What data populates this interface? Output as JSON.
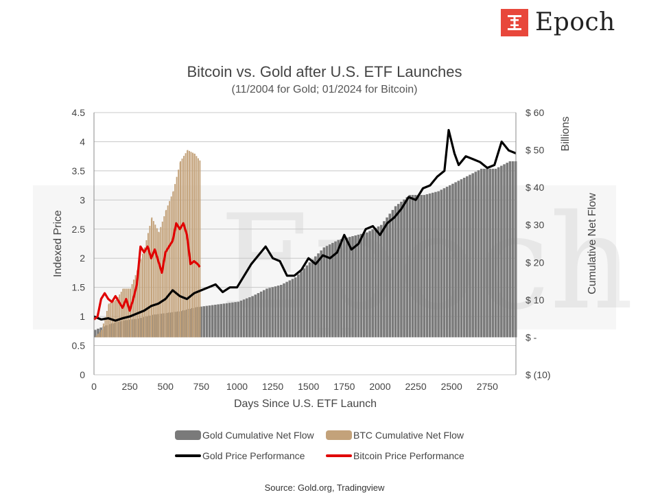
{
  "brand": {
    "name": "Epoch",
    "watermark": "Epoch",
    "color": "#e8473b",
    "icon": "epoch-logo-icon"
  },
  "title": "Bitcoin vs. Gold after U.S. ETF Launches",
  "subtitle": "(11/2004 for Gold; 01/2024 for Bitcoin)",
  "source": "Source: Gold.org, Tradingview",
  "axes": {
    "xlabel": "Days Since U.S. ETF Launch",
    "ylabel_left": "Indexed Price",
    "ylabel_right_units": "Billions",
    "ylabel_right": "Cumulative Net Flow",
    "x_ticks": [
      "0",
      "250",
      "500",
      "750",
      "1000",
      "1250",
      "1500",
      "1750",
      "2000",
      "2250",
      "2500",
      "2750"
    ],
    "y_left_ticks": [
      "0",
      "0.5",
      "1",
      "1.5",
      "2",
      "2.5",
      "3",
      "3.5",
      "4",
      "4.5"
    ],
    "y_right_ticks": [
      "$ (10)",
      "$ -",
      "$ 10",
      "$ 20",
      "$ 30",
      "$ 40",
      "$ 50",
      "$ 60"
    ]
  },
  "legend": {
    "gold_flow": "Gold Cumulative Net Flow",
    "btc_flow": "BTC Cumulative Net Flow",
    "gold_price": "Gold Price Performance",
    "btc_price": "Bitcoin Price Performance"
  },
  "colors": {
    "gold_flow": "#7a7a7a",
    "btc_flow": "#c3a27a",
    "gold_price": "#000000",
    "btc_price": "#e00000",
    "grid": "#c8c8c8"
  },
  "chart_data": {
    "type": "bar+line",
    "x_range": [
      0,
      2950
    ],
    "ylim_left": [
      0,
      4.5
    ],
    "ylim_right": [
      -10,
      60
    ],
    "grid": true,
    "legend_position": "bottom",
    "series": [
      {
        "name": "Gold Cumulative Net Flow",
        "type": "bar",
        "axis": "right",
        "x": [
          0,
          100,
          200,
          300,
          400,
          500,
          600,
          700,
          800,
          900,
          1000,
          1100,
          1200,
          1300,
          1400,
          1500,
          1600,
          1700,
          1800,
          1900,
          2000,
          2100,
          2200,
          2300,
          2400,
          2500,
          2600,
          2700,
          2800,
          2900,
          2950
        ],
        "y": [
          2,
          3.5,
          4.5,
          5,
          6,
          6.5,
          7,
          8,
          8.5,
          9,
          9.5,
          11,
          13,
          14,
          16,
          20,
          24,
          26,
          27,
          28,
          30,
          35,
          38,
          38,
          39,
          41,
          43,
          45,
          45,
          47,
          47
        ]
      },
      {
        "name": "BTC Cumulative Net Flow",
        "type": "bar",
        "axis": "right",
        "x": [
          0,
          50,
          100,
          150,
          200,
          250,
          300,
          350,
          400,
          450,
          500,
          550,
          600,
          650,
          700,
          740
        ],
        "y": [
          0,
          2,
          9,
          10,
          13,
          13,
          18,
          24,
          32,
          28,
          34,
          39,
          47,
          50,
          49,
          47
        ]
      },
      {
        "name": "Gold Price Performance",
        "type": "line",
        "axis": "left",
        "x": [
          0,
          50,
          100,
          150,
          200,
          250,
          300,
          350,
          400,
          450,
          500,
          550,
          600,
          650,
          700,
          750,
          800,
          850,
          900,
          950,
          1000,
          1050,
          1100,
          1150,
          1200,
          1250,
          1300,
          1350,
          1400,
          1450,
          1500,
          1550,
          1600,
          1650,
          1700,
          1750,
          1800,
          1850,
          1900,
          1950,
          2000,
          2050,
          2100,
          2150,
          2200,
          2250,
          2300,
          2350,
          2400,
          2450,
          2480,
          2520,
          2550,
          2600,
          2650,
          2700,
          2750,
          2800,
          2850,
          2900,
          2950
        ],
        "y": [
          1.0,
          0.95,
          0.97,
          0.93,
          0.97,
          1.0,
          1.05,
          1.1,
          1.18,
          1.22,
          1.3,
          1.45,
          1.35,
          1.3,
          1.4,
          1.45,
          1.5,
          1.55,
          1.42,
          1.5,
          1.5,
          1.7,
          1.9,
          2.05,
          2.2,
          2.0,
          1.95,
          1.7,
          1.7,
          1.8,
          2.0,
          1.9,
          2.05,
          2.0,
          2.1,
          2.4,
          2.15,
          2.25,
          2.5,
          2.55,
          2.4,
          2.6,
          2.7,
          2.85,
          3.05,
          3.0,
          3.2,
          3.25,
          3.4,
          3.5,
          4.2,
          3.8,
          3.6,
          3.75,
          3.7,
          3.65,
          3.55,
          3.6,
          4.0,
          3.85,
          3.8
        ]
      },
      {
        "name": "Bitcoin Price Performance",
        "type": "line",
        "axis": "left",
        "x": [
          0,
          25,
          50,
          75,
          100,
          125,
          150,
          175,
          200,
          225,
          250,
          275,
          300,
          325,
          350,
          375,
          400,
          425,
          450,
          475,
          500,
          525,
          550,
          575,
          600,
          625,
          650,
          675,
          700,
          725,
          740
        ],
        "y": [
          0.95,
          1.0,
          1.3,
          1.4,
          1.3,
          1.25,
          1.35,
          1.25,
          1.15,
          1.3,
          1.1,
          1.3,
          1.55,
          2.2,
          2.1,
          2.2,
          2.0,
          2.15,
          1.95,
          1.75,
          2.1,
          2.2,
          2.3,
          2.6,
          2.5,
          2.6,
          2.4,
          1.9,
          1.95,
          1.9,
          1.85
        ]
      }
    ]
  }
}
